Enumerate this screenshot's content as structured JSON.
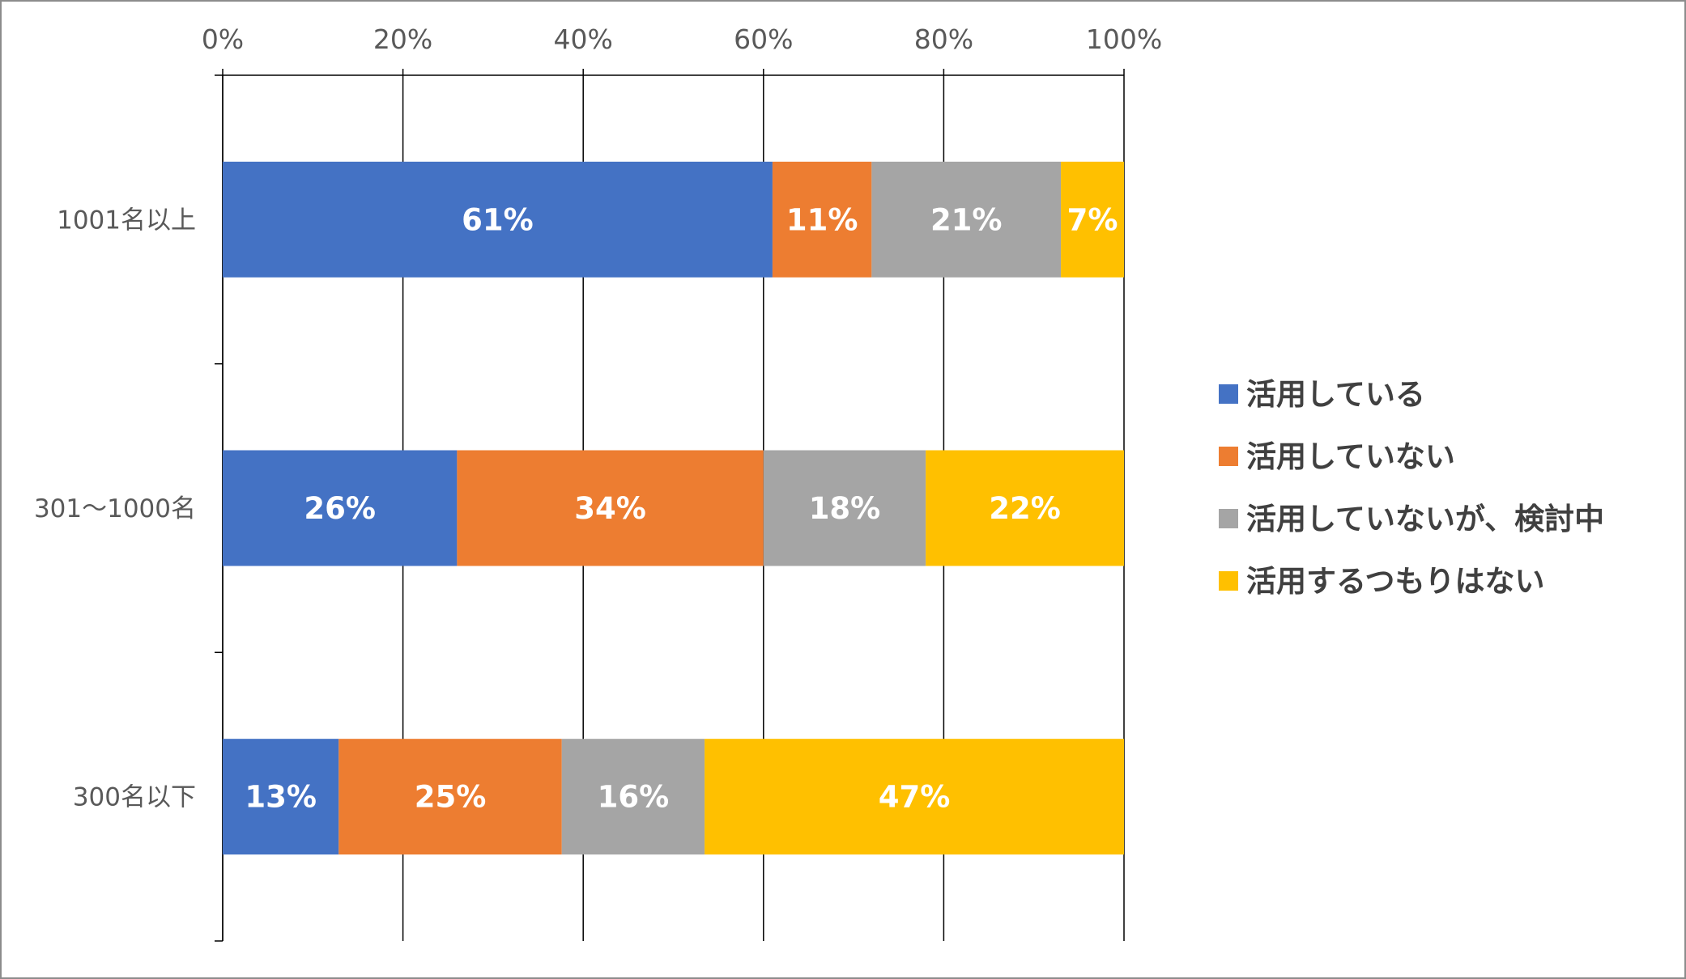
{
  "chart_data": {
    "type": "bar",
    "orientation": "horizontal",
    "stacked": "percent",
    "categories": [
      "1001名以上",
      "301～1000名",
      "300名以下"
    ],
    "x_ticks": [
      "0%",
      "20%",
      "40%",
      "60%",
      "80%",
      "100%"
    ],
    "xlim": [
      0,
      100
    ],
    "grid": "vertical",
    "legend_position": "right",
    "series": [
      {
        "name": "活用している",
        "color": "#4472C4",
        "values": [
          61,
          26,
          13
        ],
        "labels": [
          "61%",
          "26%",
          "13%"
        ]
      },
      {
        "name": "活用していない",
        "color": "#ED7D31",
        "values": [
          11,
          34,
          25
        ],
        "labels": [
          "11%",
          "34%",
          "25%"
        ]
      },
      {
        "name": "活用していないが、検討中",
        "color": "#A5A5A5",
        "values": [
          21,
          18,
          16
        ],
        "labels": [
          "21%",
          "18%",
          "16%"
        ]
      },
      {
        "name": "活用するつもりはない",
        "color": "#FFC000",
        "values": [
          7,
          22,
          47
        ],
        "labels": [
          "7%",
          "22%",
          "47%"
        ]
      }
    ]
  }
}
